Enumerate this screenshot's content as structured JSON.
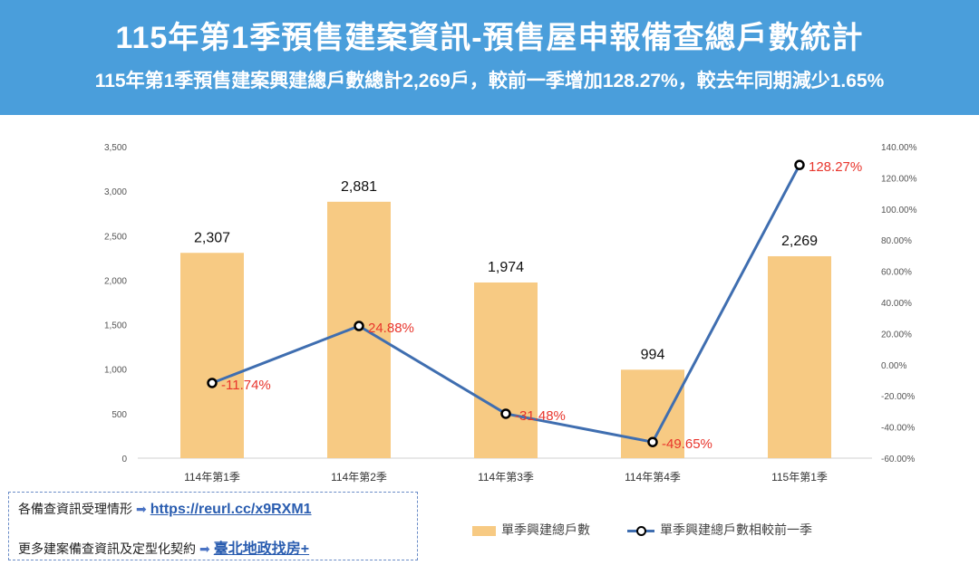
{
  "header": {
    "title": "115年第1季預售建案資訊-預售屋申報備查總戶數統計",
    "subtitle": "115年第1季預售建案興建總戶數總計2,269戶，較前一季增加128.27%，較去年同期減少1.65%"
  },
  "chart_data": {
    "type": "bar",
    "categories": [
      "114年第1季",
      "114年第2季",
      "114年第3季",
      "114年第4季",
      "115年第1季"
    ],
    "series": [
      {
        "name": "單季興建總戶數",
        "type": "bar",
        "axis": "left",
        "values": [
          2307,
          2881,
          1974,
          994,
          2269
        ],
        "labels": [
          "2,307",
          "2,881",
          "1,974",
          "994",
          "2,269"
        ],
        "color": "#f7ca83"
      },
      {
        "name": "單季興建總戶數相較前一季",
        "type": "line",
        "axis": "right",
        "values": [
          -11.74,
          24.88,
          -31.48,
          -49.65,
          128.27
        ],
        "labels": [
          "-11.74%",
          "24.88%",
          "-31.48%",
          "-49.65%",
          "128.27%"
        ],
        "color": "#3f6eb0",
        "label_color": "#e8352c"
      }
    ],
    "y_left": {
      "min": 0,
      "max": 3500,
      "ticks": [
        "0",
        "500",
        "1,000",
        "1,500",
        "2,000",
        "2,500",
        "3,000",
        "3,500"
      ]
    },
    "y_right": {
      "min": -60,
      "max": 140,
      "ticks": [
        "-60.00%",
        "-40.00%",
        "-20.00%",
        "0.00%",
        "20.00%",
        "40.00%",
        "60.00%",
        "80.00%",
        "100.00%",
        "120.00%",
        "140.00%"
      ]
    },
    "grid": false,
    "legend_position": "bottom-right"
  },
  "info": {
    "row1_label": "各備查資訊受理情形",
    "row1_link": "https://reurl.cc/x9RXM1",
    "row2_label": "更多建案備查資訊及定型化契約",
    "row2_link": "臺北地政找房+",
    "arrow": "➡"
  },
  "legend": {
    "bar_label": "單季興建總戶數",
    "line_label": "單季興建總戶數相較前一季"
  }
}
